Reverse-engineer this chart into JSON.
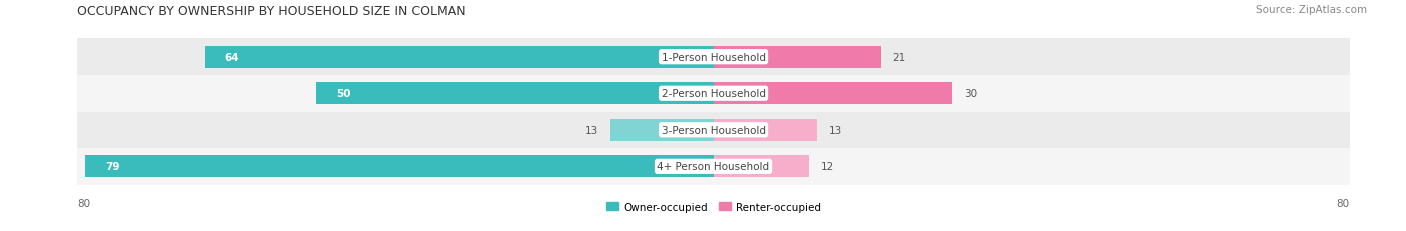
{
  "title": "OCCUPANCY BY OWNERSHIP BY HOUSEHOLD SIZE IN COLMAN",
  "source": "Source: ZipAtlas.com",
  "categories": [
    "1-Person Household",
    "2-Person Household",
    "3-Person Household",
    "4+ Person Household"
  ],
  "owner_values": [
    64,
    50,
    13,
    79
  ],
  "renter_values": [
    21,
    30,
    13,
    12
  ],
  "owner_colors": [
    "#3bbcbc",
    "#3bbcbc",
    "#80d4d4",
    "#3bbcbc"
  ],
  "renter_colors": [
    "#f07baa",
    "#f07baa",
    "#f7aecb",
    "#f7aecb"
  ],
  "row_bg_colors": [
    "#ebebeb",
    "#f5f5f5",
    "#ebebeb",
    "#f5f5f5"
  ],
  "axis_limit": 80,
  "legend_owner": "Owner-occupied",
  "legend_renter": "Renter-occupied",
  "legend_owner_color": "#3bbcbc",
  "legend_renter_color": "#f07baa",
  "title_fontsize": 9,
  "source_fontsize": 7.5,
  "label_fontsize": 7.5,
  "value_fontsize": 7.5,
  "tick_fontsize": 7.5,
  "figsize": [
    14.06,
    2.32
  ],
  "dpi": 100
}
